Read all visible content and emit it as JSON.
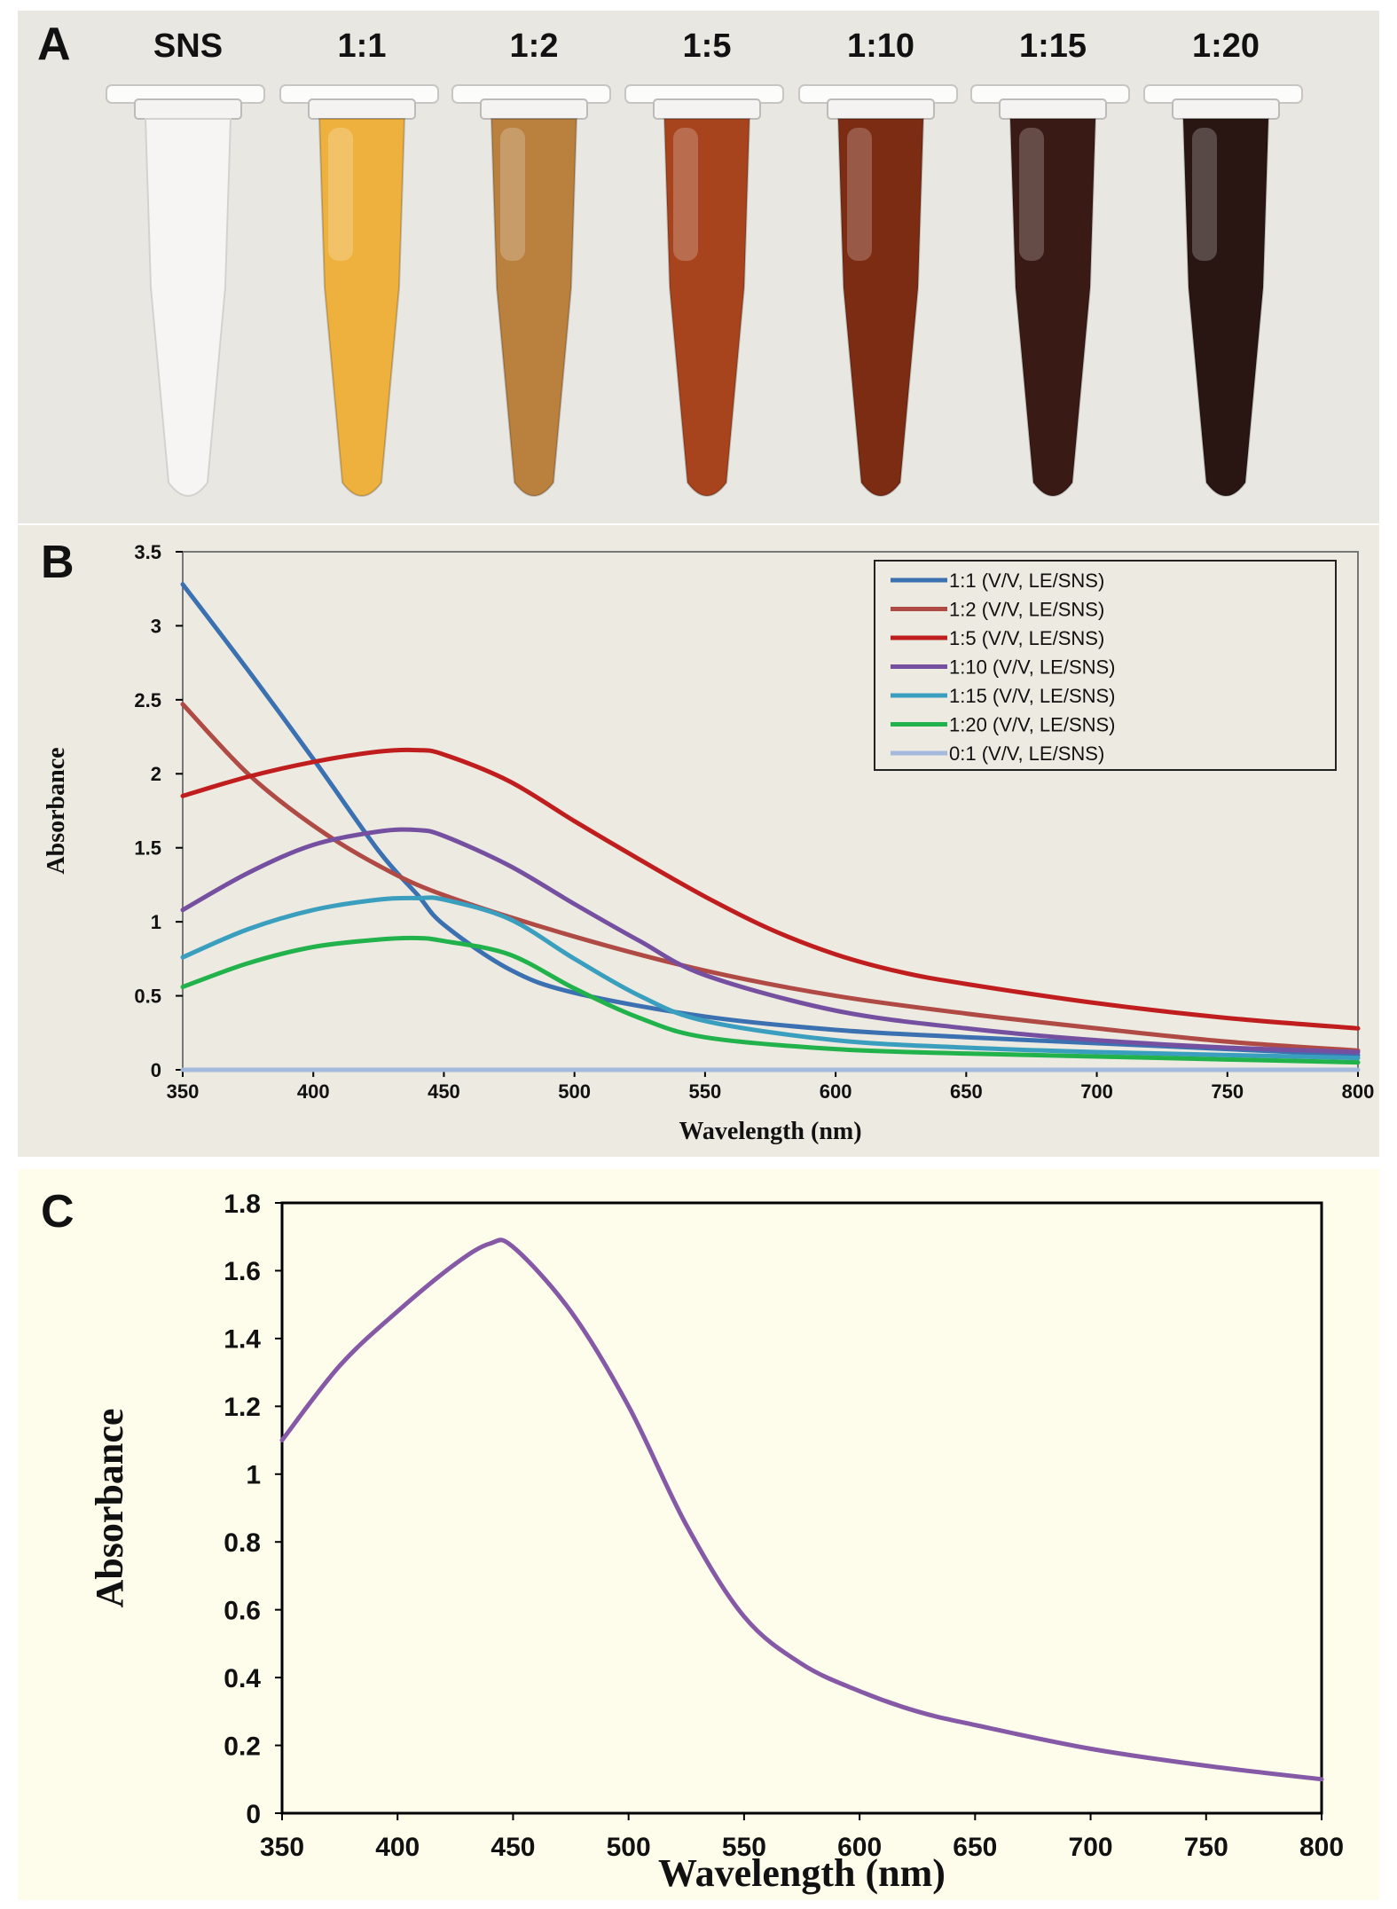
{
  "panel_a": {
    "letter": "A",
    "tubes": [
      {
        "label": "SNS",
        "fill_color": "#f1f0ee",
        "empty": true
      },
      {
        "label": "1:1",
        "fill_color": "#efb13e"
      },
      {
        "label": "1:2",
        "fill_color": "#b9803e"
      },
      {
        "label": "1:5",
        "fill_color": "#a7441d"
      },
      {
        "label": "1:10",
        "fill_color": "#7c2c13"
      },
      {
        "label": "1:15",
        "fill_color": "#3a1a14"
      },
      {
        "label": "1:20",
        "fill_color": "#291512"
      }
    ]
  },
  "chart_data": [
    {
      "panel": "B",
      "type": "line",
      "xlabel": "Wavelength  (nm)",
      "ylabel": "Absorbance",
      "xlim": [
        350,
        800
      ],
      "ylim": [
        0,
        3.5
      ],
      "xticks": [
        "350",
        "400",
        "450",
        "500",
        "550",
        "600",
        "650",
        "700",
        "750",
        "800"
      ],
      "yticks": [
        "0",
        "0.5",
        "1",
        "1.5",
        "2",
        "2.5",
        "3",
        "3.5"
      ],
      "legend_position": "top-right",
      "series": [
        {
          "name": "1:1 (V/V, LE/SNS)",
          "color": "#3b70b1",
          "x": [
            350,
            375,
            400,
            425,
            440,
            450,
            475,
            500,
            550,
            600,
            650,
            700,
            750,
            800
          ],
          "y": [
            3.28,
            2.7,
            2.1,
            1.48,
            1.18,
            0.98,
            0.68,
            0.52,
            0.36,
            0.27,
            0.22,
            0.18,
            0.14,
            0.1
          ]
        },
        {
          "name": "1:2 (V/V, LE/SNS)",
          "color": "#b04a45",
          "x": [
            350,
            375,
            400,
            425,
            450,
            500,
            550,
            600,
            650,
            700,
            750,
            800
          ],
          "y": [
            2.47,
            2.0,
            1.65,
            1.38,
            1.18,
            0.9,
            0.67,
            0.5,
            0.38,
            0.28,
            0.19,
            0.13
          ]
        },
        {
          "name": "1:5 (V/V, LE/SNS)",
          "color": "#c01e1e",
          "x": [
            350,
            375,
            400,
            425,
            440,
            450,
            475,
            500,
            525,
            550,
            575,
            600,
            625,
            650,
            700,
            750,
            800
          ],
          "y": [
            1.85,
            1.98,
            2.08,
            2.15,
            2.16,
            2.13,
            1.95,
            1.68,
            1.42,
            1.17,
            0.95,
            0.78,
            0.66,
            0.58,
            0.45,
            0.35,
            0.28
          ]
        },
        {
          "name": "1:10 (V/V, LE/SNS)",
          "color": "#7650a0",
          "x": [
            350,
            375,
            400,
            425,
            440,
            450,
            475,
            500,
            525,
            550,
            600,
            650,
            700,
            750,
            800
          ],
          "y": [
            1.08,
            1.33,
            1.52,
            1.61,
            1.62,
            1.58,
            1.38,
            1.12,
            0.87,
            0.64,
            0.4,
            0.28,
            0.2,
            0.15,
            0.12
          ]
        },
        {
          "name": "1:15 (V/V, LE/SNS)",
          "color": "#3a9ebe",
          "x": [
            350,
            375,
            400,
            425,
            440,
            450,
            475,
            500,
            525,
            550,
            600,
            650,
            700,
            750,
            800
          ],
          "y": [
            0.76,
            0.95,
            1.08,
            1.15,
            1.16,
            1.15,
            1.02,
            0.75,
            0.5,
            0.33,
            0.2,
            0.15,
            0.12,
            0.1,
            0.08
          ]
        },
        {
          "name": "1:20 (V/V, LE/SNS)",
          "color": "#22b24c",
          "x": [
            350,
            375,
            400,
            425,
            440,
            450,
            475,
            500,
            525,
            550,
            600,
            650,
            700,
            750,
            800
          ],
          "y": [
            0.56,
            0.72,
            0.83,
            0.88,
            0.89,
            0.87,
            0.78,
            0.55,
            0.35,
            0.22,
            0.14,
            0.11,
            0.09,
            0.07,
            0.05
          ]
        },
        {
          "name": "0:1 (V/V, LE/SNS)",
          "color": "#a4b9dc",
          "x": [
            350,
            800
          ],
          "y": [
            0.0,
            0.0
          ]
        }
      ]
    },
    {
      "panel": "C",
      "type": "line",
      "xlabel": "Wavelength  (nm)",
      "ylabel": "Absorbance",
      "xlim": [
        350,
        800
      ],
      "ylim": [
        0,
        1.8
      ],
      "xticks": [
        "350",
        "400",
        "450",
        "500",
        "550",
        "600",
        "650",
        "700",
        "750",
        "800"
      ],
      "yticks": [
        "0",
        "0.2",
        "0.4",
        "0.6",
        "0.8",
        "1",
        "1.2",
        "1.4",
        "1.6",
        "1.8"
      ],
      "series": [
        {
          "name": "absorbance",
          "color": "#8559a6",
          "x": [
            350,
            375,
            400,
            425,
            440,
            450,
            475,
            500,
            525,
            550,
            575,
            600,
            625,
            650,
            700,
            750,
            800
          ],
          "y": [
            1.1,
            1.32,
            1.48,
            1.62,
            1.68,
            1.67,
            1.48,
            1.2,
            0.85,
            0.58,
            0.44,
            0.36,
            0.3,
            0.26,
            0.19,
            0.14,
            0.1
          ]
        }
      ]
    }
  ]
}
